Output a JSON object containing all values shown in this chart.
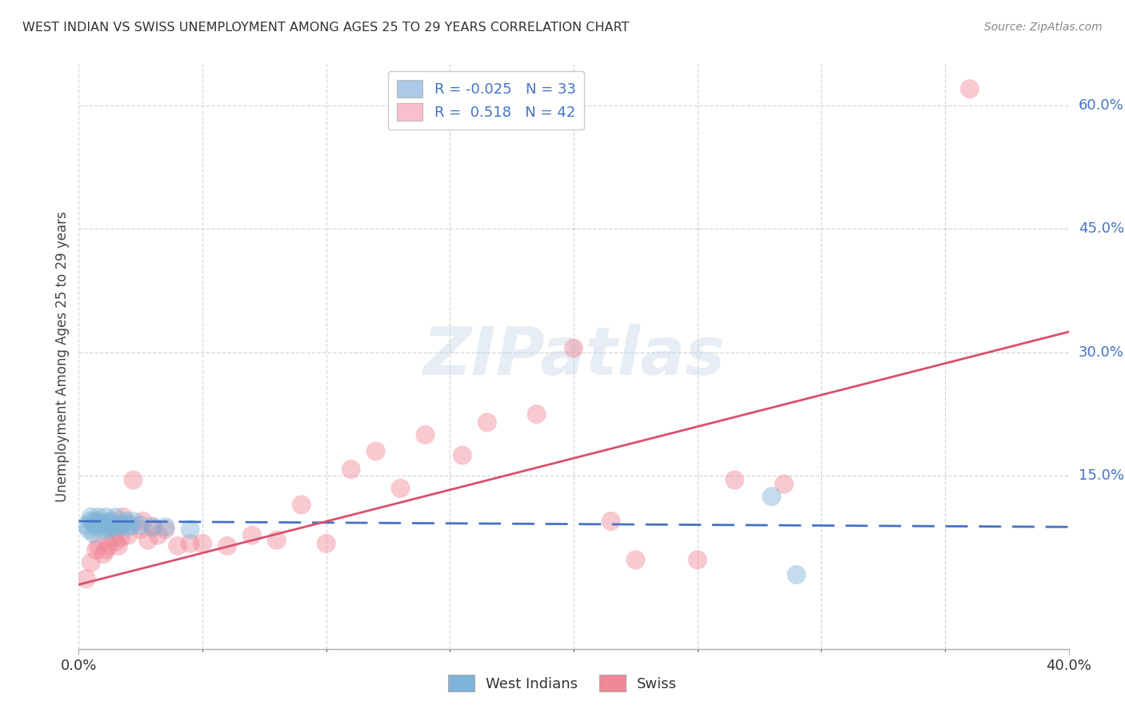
{
  "title": "WEST INDIAN VS SWISS UNEMPLOYMENT AMONG AGES 25 TO 29 YEARS CORRELATION CHART",
  "source": "Source: ZipAtlas.com",
  "ylabel": "Unemployment Among Ages 25 to 29 years",
  "right_yticks": [
    "60.0%",
    "45.0%",
    "30.0%",
    "15.0%"
  ],
  "right_ytick_vals": [
    0.6,
    0.45,
    0.3,
    0.15
  ],
  "legend_entry_1": "R = -0.025   N = 33",
  "legend_entry_2": "R =  0.518   N = 42",
  "legend_color_1": "#adc9e8",
  "legend_color_2": "#f9bfcc",
  "west_indian_color": "#7fb3d8",
  "swiss_color": "#f08898",
  "west_indian_line_color": "#4472c4",
  "swiss_line_color": "#d94f6e",
  "watermark_text": "ZIPatlas",
  "xlim": [
    0.0,
    0.4
  ],
  "ylim": [
    -0.06,
    0.65
  ],
  "west_indian_x": [
    0.003,
    0.004,
    0.005,
    0.005,
    0.006,
    0.006,
    0.007,
    0.008,
    0.008,
    0.009,
    0.01,
    0.01,
    0.011,
    0.011,
    0.012,
    0.012,
    0.013,
    0.013,
    0.014,
    0.015,
    0.016,
    0.017,
    0.018,
    0.019,
    0.02,
    0.021,
    0.022,
    0.025,
    0.03,
    0.035,
    0.045,
    0.28,
    0.29
  ],
  "west_indian_y": [
    0.09,
    0.085,
    0.095,
    0.1,
    0.08,
    0.092,
    0.088,
    0.095,
    0.1,
    0.092,
    0.085,
    0.092,
    0.088,
    0.1,
    0.085,
    0.092,
    0.09,
    0.095,
    0.088,
    0.1,
    0.09,
    0.088,
    0.092,
    0.095,
    0.088,
    0.09,
    0.095,
    0.09,
    0.088,
    0.088,
    0.085,
    0.125,
    0.03
  ],
  "swiss_x": [
    0.003,
    0.005,
    0.007,
    0.008,
    0.01,
    0.011,
    0.012,
    0.014,
    0.015,
    0.016,
    0.017,
    0.018,
    0.02,
    0.022,
    0.025,
    0.026,
    0.028,
    0.03,
    0.032,
    0.035,
    0.04,
    0.045,
    0.05,
    0.06,
    0.07,
    0.08,
    0.09,
    0.1,
    0.11,
    0.12,
    0.13,
    0.14,
    0.155,
    0.165,
    0.185,
    0.2,
    0.215,
    0.225,
    0.25,
    0.265,
    0.285,
    0.36
  ],
  "swiss_y": [
    0.025,
    0.045,
    0.06,
    0.065,
    0.055,
    0.06,
    0.065,
    0.075,
    0.07,
    0.065,
    0.075,
    0.1,
    0.078,
    0.145,
    0.085,
    0.095,
    0.072,
    0.088,
    0.078,
    0.085,
    0.065,
    0.068,
    0.068,
    0.065,
    0.078,
    0.072,
    0.115,
    0.068,
    0.158,
    0.18,
    0.135,
    0.2,
    0.175,
    0.215,
    0.225,
    0.305,
    0.095,
    0.048,
    0.048,
    0.145,
    0.14,
    0.62
  ],
  "west_indian_trend_x": [
    0.0,
    0.4
  ],
  "west_indian_trend_y": [
    0.095,
    0.088
  ],
  "swiss_trend_x": [
    0.0,
    0.4
  ],
  "swiss_trend_y": [
    0.018,
    0.325
  ]
}
